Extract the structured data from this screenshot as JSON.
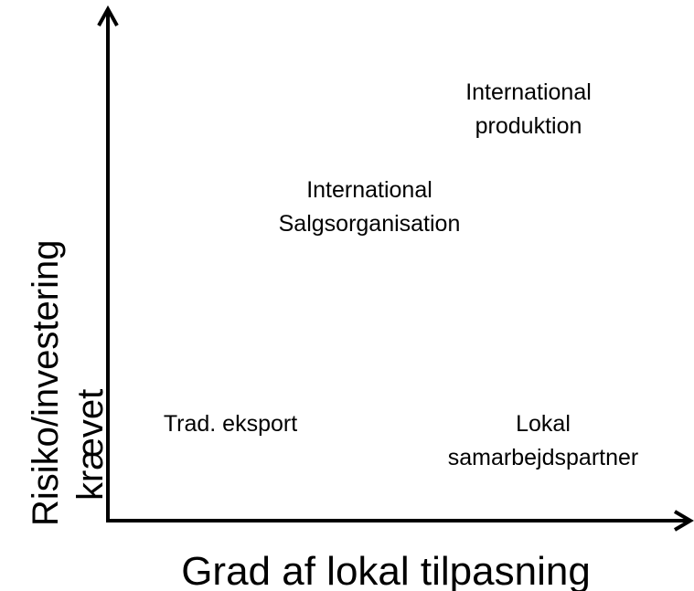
{
  "axes": {
    "y_label": [
      "Risiko/investering",
      "krævet"
    ],
    "x_label": "Grad af lokal tilpasning"
  },
  "items": [
    {
      "lines": [
        "International",
        "produktion"
      ]
    },
    {
      "lines": [
        "International",
        "Salgsorganisation"
      ]
    },
    {
      "lines": [
        "Trad. eksport"
      ]
    },
    {
      "lines": [
        "Lokal",
        "samarbejdspartner"
      ]
    }
  ]
}
